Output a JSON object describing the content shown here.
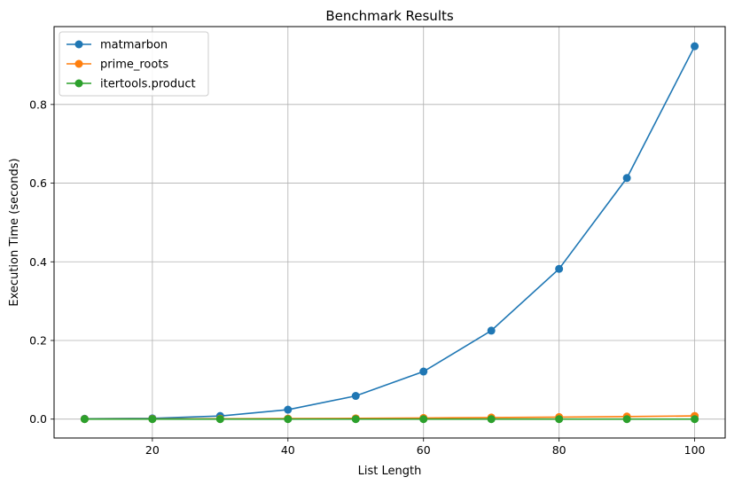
{
  "chart_data": {
    "type": "line",
    "title": "Benchmark Results",
    "xlabel": "List Length",
    "ylabel": "Execution Time (seconds)",
    "x": [
      10,
      20,
      30,
      40,
      50,
      60,
      70,
      80,
      90,
      100
    ],
    "xlim": [
      5.5,
      104.5
    ],
    "ylim": [
      -0.048,
      0.998
    ],
    "xticks": [
      20,
      40,
      60,
      80,
      100
    ],
    "yticks": [
      0.0,
      0.2,
      0.4,
      0.6,
      0.8
    ],
    "xtick_labels": [
      "20",
      "40",
      "60",
      "80",
      "100"
    ],
    "ytick_labels": [
      "0.0",
      "0.2",
      "0.4",
      "0.6",
      "0.8"
    ],
    "grid": true,
    "legend_position": "top-left",
    "series": [
      {
        "name": "matmarbon",
        "color": "#1f77b4",
        "values": [
          0.001,
          0.002,
          0.008,
          0.024,
          0.059,
          0.121,
          0.225,
          0.382,
          0.613,
          0.948
        ]
      },
      {
        "name": "prime_roots",
        "color": "#ff7f0e",
        "values": [
          0.0002,
          0.0005,
          0.0009,
          0.0014,
          0.002,
          0.003,
          0.004,
          0.0052,
          0.0066,
          0.0082
        ]
      },
      {
        "name": "itertools.product",
        "color": "#2ca02c",
        "values": [
          0.0,
          0.0,
          0.0,
          0.0,
          0.0,
          0.0,
          0.0,
          0.0,
          0.0,
          0.0
        ]
      }
    ]
  }
}
